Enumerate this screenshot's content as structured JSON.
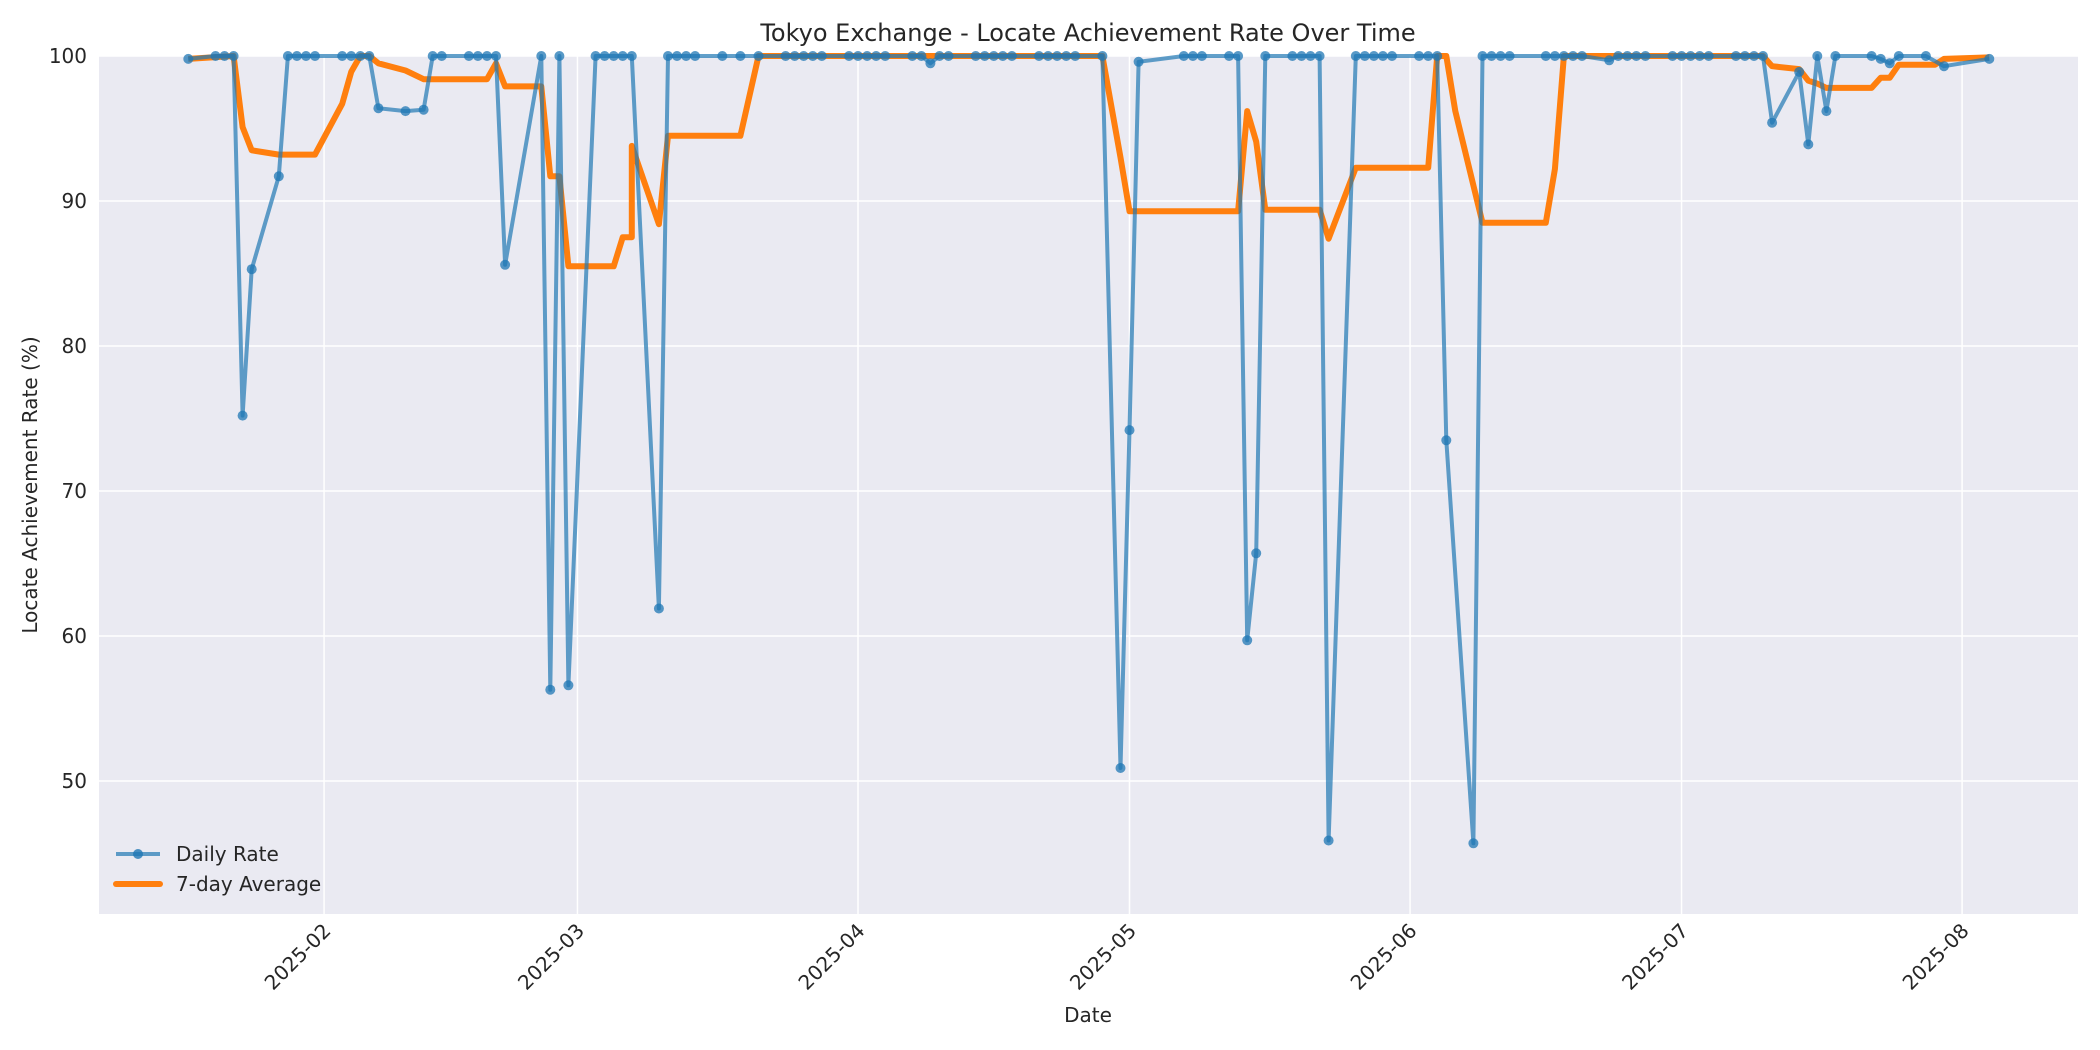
{
  "chart_data": {
    "type": "line",
    "title": "Tokyo Exchange - Locate Achievement Rate Over Time",
    "xlabel": "Date",
    "ylabel": "Locate Achievement Rate (%)",
    "x_tick_labels": [
      "2025-02",
      "2025-03",
      "2025-04",
      "2025-05",
      "2025-06",
      "2025-07",
      "2025-08"
    ],
    "y_tick_labels": [
      "50",
      "60",
      "70",
      "80",
      "90",
      "100"
    ],
    "ylim": [
      40.8,
      100
    ],
    "xlim": [
      "2025-01-07",
      "2025-08-13"
    ],
    "grid": true,
    "legend_position": "lower left",
    "colors": {
      "daily": "#1f77b4",
      "average": "#ff7f0e",
      "plot_bg": "#eaeaf2",
      "grid": "#ffffff"
    },
    "series": [
      {
        "name": "Daily Rate",
        "style": "line+markers",
        "points": [
          [
            "2025-01-17",
            99.8
          ],
          [
            "2025-01-20",
            100
          ],
          [
            "2025-01-21",
            100
          ],
          [
            "2025-01-22",
            100
          ],
          [
            "2025-01-23",
            75.2
          ],
          [
            "2025-01-24",
            85.3
          ],
          [
            "2025-01-27",
            91.7
          ],
          [
            "2025-01-28",
            100
          ],
          [
            "2025-01-29",
            100
          ],
          [
            "2025-01-30",
            100
          ],
          [
            "2025-01-31",
            100
          ],
          [
            "2025-02-03",
            100
          ],
          [
            "2025-02-04",
            100
          ],
          [
            "2025-02-05",
            100
          ],
          [
            "2025-02-06",
            100
          ],
          [
            "2025-02-07",
            96.4
          ],
          [
            "2025-02-10",
            96.2
          ],
          [
            "2025-02-12",
            96.3
          ],
          [
            "2025-02-13",
            100
          ],
          [
            "2025-02-14",
            100
          ],
          [
            "2025-02-17",
            100
          ],
          [
            "2025-02-18",
            100
          ],
          [
            "2025-02-19",
            100
          ],
          [
            "2025-02-20",
            100
          ],
          [
            "2025-02-21",
            85.6
          ],
          [
            "2025-02-25",
            100
          ],
          [
            "2025-02-26",
            56.3
          ],
          [
            "2025-02-27",
            100
          ],
          [
            "2025-02-28",
            56.6
          ],
          [
            "2025-03-03",
            100
          ],
          [
            "2025-03-04",
            100
          ],
          [
            "2025-03-05",
            100
          ],
          [
            "2025-03-06",
            100
          ],
          [
            "2025-03-07",
            100
          ],
          [
            "2025-03-10",
            61.9
          ],
          [
            "2025-03-11",
            100
          ],
          [
            "2025-03-12",
            100
          ],
          [
            "2025-03-13",
            100
          ],
          [
            "2025-03-14",
            100
          ],
          [
            "2025-03-17",
            100
          ],
          [
            "2025-03-19",
            100
          ],
          [
            "2025-03-21",
            100
          ],
          [
            "2025-03-24",
            100
          ],
          [
            "2025-03-25",
            100
          ],
          [
            "2025-03-26",
            100
          ],
          [
            "2025-03-27",
            100
          ],
          [
            "2025-03-28",
            100
          ],
          [
            "2025-03-31",
            100
          ],
          [
            "2025-04-01",
            100
          ],
          [
            "2025-04-02",
            100
          ],
          [
            "2025-04-03",
            100
          ],
          [
            "2025-04-04",
            100
          ],
          [
            "2025-04-07",
            100
          ],
          [
            "2025-04-08",
            100
          ],
          [
            "2025-04-09",
            99.5
          ],
          [
            "2025-04-10",
            100
          ],
          [
            "2025-04-11",
            100
          ],
          [
            "2025-04-14",
            100
          ],
          [
            "2025-04-15",
            100
          ],
          [
            "2025-04-16",
            100
          ],
          [
            "2025-04-17",
            100
          ],
          [
            "2025-04-18",
            100
          ],
          [
            "2025-04-21",
            100
          ],
          [
            "2025-04-22",
            100
          ],
          [
            "2025-04-23",
            100
          ],
          [
            "2025-04-24",
            100
          ],
          [
            "2025-04-25",
            100
          ],
          [
            "2025-04-28",
            100
          ],
          [
            "2025-04-30",
            50.9
          ],
          [
            "2025-05-01",
            74.2
          ],
          [
            "2025-05-02",
            99.6
          ],
          [
            "2025-05-07",
            100
          ],
          [
            "2025-05-08",
            100
          ],
          [
            "2025-05-09",
            100
          ],
          [
            "2025-05-12",
            100
          ],
          [
            "2025-05-13",
            100
          ],
          [
            "2025-05-14",
            59.7
          ],
          [
            "2025-05-15",
            65.7
          ],
          [
            "2025-05-16",
            100
          ],
          [
            "2025-05-19",
            100
          ],
          [
            "2025-05-20",
            100
          ],
          [
            "2025-05-21",
            100
          ],
          [
            "2025-05-22",
            100
          ],
          [
            "2025-05-23",
            45.9
          ],
          [
            "2025-05-26",
            100
          ],
          [
            "2025-05-27",
            100
          ],
          [
            "2025-05-28",
            100
          ],
          [
            "2025-05-29",
            100
          ],
          [
            "2025-05-30",
            100
          ],
          [
            "2025-06-02",
            100
          ],
          [
            "2025-06-03",
            100
          ],
          [
            "2025-06-04",
            100
          ],
          [
            "2025-06-05",
            73.5
          ],
          [
            "2025-06-08",
            45.7
          ],
          [
            "2025-06-09",
            100
          ],
          [
            "2025-06-10",
            100
          ],
          [
            "2025-06-11",
            100
          ],
          [
            "2025-06-12",
            100
          ],
          [
            "2025-06-16",
            100
          ],
          [
            "2025-06-17",
            100
          ],
          [
            "2025-06-18",
            100
          ],
          [
            "2025-06-19",
            100
          ],
          [
            "2025-06-20",
            100
          ],
          [
            "2025-06-23",
            99.7
          ],
          [
            "2025-06-24",
            100
          ],
          [
            "2025-06-25",
            100
          ],
          [
            "2025-06-26",
            100
          ],
          [
            "2025-06-27",
            100
          ],
          [
            "2025-06-30",
            100
          ],
          [
            "2025-07-01",
            100
          ],
          [
            "2025-07-02",
            100
          ],
          [
            "2025-07-03",
            100
          ],
          [
            "2025-07-04",
            100
          ],
          [
            "2025-07-07",
            100
          ],
          [
            "2025-07-08",
            100
          ],
          [
            "2025-07-09",
            100
          ],
          [
            "2025-07-10",
            100
          ],
          [
            "2025-07-11",
            95.4
          ],
          [
            "2025-07-14",
            98.9
          ],
          [
            "2025-07-15",
            93.9
          ],
          [
            "2025-07-16",
            100
          ],
          [
            "2025-07-17",
            96.2
          ],
          [
            "2025-07-18",
            100
          ],
          [
            "2025-07-22",
            100
          ],
          [
            "2025-07-23",
            99.8
          ],
          [
            "2025-07-24",
            99.5
          ],
          [
            "2025-07-25",
            100
          ],
          [
            "2025-07-28",
            100
          ],
          [
            "2025-07-30",
            99.3
          ],
          [
            "2025-08-04",
            99.8
          ]
        ]
      },
      {
        "name": "7-day Average",
        "style": "line",
        "points": [
          [
            "2025-01-17",
            99.8
          ],
          [
            "2025-01-22",
            100
          ],
          [
            "2025-01-23",
            95.1
          ],
          [
            "2025-01-24",
            93.5
          ],
          [
            "2025-01-27",
            93.2
          ],
          [
            "2025-01-31",
            93.2
          ],
          [
            "2025-02-03",
            96.7
          ],
          [
            "2025-02-04",
            98.9
          ],
          [
            "2025-02-05",
            100
          ],
          [
            "2025-02-06",
            100
          ],
          [
            "2025-02-07",
            99.5
          ],
          [
            "2025-02-10",
            99.0
          ],
          [
            "2025-02-12",
            98.4
          ],
          [
            "2025-02-19",
            98.4
          ],
          [
            "2025-02-20",
            99.5
          ],
          [
            "2025-02-21",
            97.9
          ],
          [
            "2025-02-25",
            97.9
          ],
          [
            "2025-02-26",
            91.7
          ],
          [
            "2025-02-27",
            91.7
          ],
          [
            "2025-02-28",
            85.5
          ],
          [
            "2025-03-03",
            85.5
          ],
          [
            "2025-03-05",
            85.5
          ],
          [
            "2025-03-06",
            87.5
          ],
          [
            "2025-03-07",
            87.5
          ],
          [
            "2025-03-07",
            93.8
          ],
          [
            "2025-03-10",
            88.4
          ],
          [
            "2025-03-11",
            94.5
          ],
          [
            "2025-03-19",
            94.5
          ],
          [
            "2025-03-21",
            100
          ],
          [
            "2025-04-28",
            100
          ],
          [
            "2025-04-30",
            93.0
          ],
          [
            "2025-05-01",
            89.3
          ],
          [
            "2025-05-13",
            89.3
          ],
          [
            "2025-05-14",
            96.2
          ],
          [
            "2025-05-15",
            94.1
          ],
          [
            "2025-05-16",
            89.4
          ],
          [
            "2025-05-22",
            89.4
          ],
          [
            "2025-05-23",
            87.4
          ],
          [
            "2025-05-26",
            92.3
          ],
          [
            "2025-06-03",
            92.3
          ],
          [
            "2025-06-04",
            100
          ],
          [
            "2025-06-05",
            100
          ],
          [
            "2025-06-06",
            96.2
          ],
          [
            "2025-06-09",
            88.5
          ],
          [
            "2025-06-16",
            88.5
          ],
          [
            "2025-06-17",
            92.2
          ],
          [
            "2025-06-18",
            100
          ],
          [
            "2025-07-10",
            100
          ],
          [
            "2025-07-11",
            99.3
          ],
          [
            "2025-07-14",
            99.1
          ],
          [
            "2025-07-15",
            98.3
          ],
          [
            "2025-07-16",
            98.1
          ],
          [
            "2025-07-17",
            97.8
          ],
          [
            "2025-07-22",
            97.8
          ],
          [
            "2025-07-23",
            98.5
          ],
          [
            "2025-07-24",
            98.5
          ],
          [
            "2025-07-25",
            99.4
          ],
          [
            "2025-07-29",
            99.4
          ],
          [
            "2025-07-30",
            99.8
          ],
          [
            "2025-08-04",
            99.9
          ]
        ]
      }
    ]
  },
  "legend": {
    "items": [
      {
        "label": "Daily Rate"
      },
      {
        "label": "7-day Average"
      }
    ]
  }
}
